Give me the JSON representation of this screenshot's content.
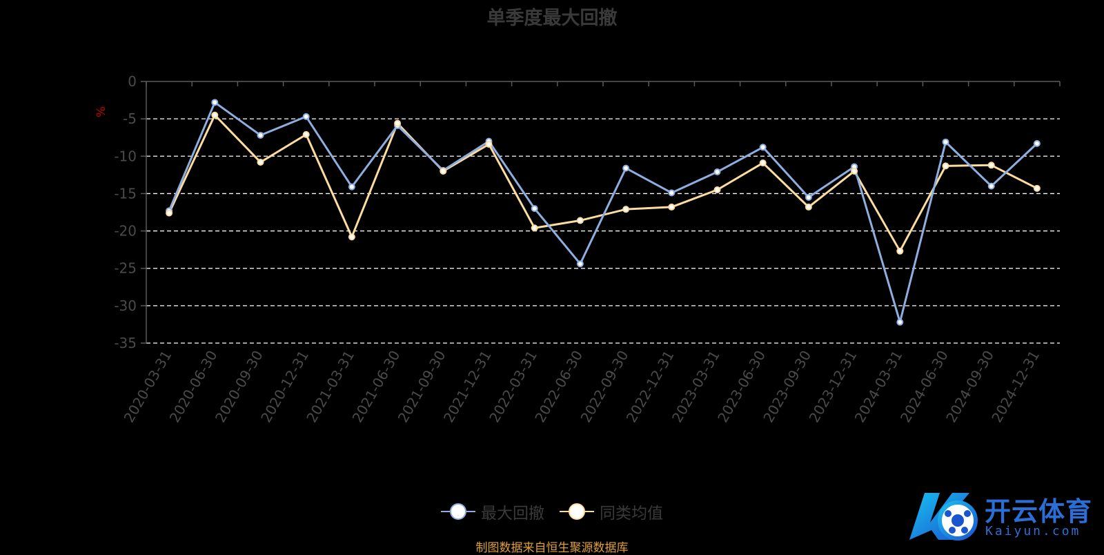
{
  "title": "单季度最大回撤",
  "source": "制图数据来自恒生聚源数据库",
  "logo": {
    "text": "开云体育",
    "sub": "Kaiyun.com"
  },
  "colors": {
    "series1": "#8eaee0",
    "series2": "#fddca0",
    "grid": "#ffffff",
    "axis": "#5a5a5a",
    "tick_label": "#4a4a4a",
    "unit": "#c00000"
  },
  "chart_data": {
    "type": "line",
    "title": "单季度最大回撤",
    "ylabel": "%",
    "ylim": [
      -35,
      0
    ],
    "yticks": [
      0,
      -5,
      -10,
      -15,
      -20,
      -25,
      -30,
      -35
    ],
    "grid": true,
    "legend_position": "bottom-center",
    "categories": [
      "2020-03-31",
      "2020-06-30",
      "2020-09-30",
      "2020-12-31",
      "2021-03-31",
      "2021-06-30",
      "2021-09-30",
      "2021-12-31",
      "2022-03-31",
      "2022-06-30",
      "2022-09-30",
      "2022-12-31",
      "2023-03-31",
      "2023-06-30",
      "2023-09-30",
      "2023-12-31",
      "2024-03-31",
      "2024-06-30",
      "2024-09-30",
      "2024-12-31"
    ],
    "series": [
      {
        "name": "最大回撤",
        "values": [
          -17.3,
          -2.8,
          -7.2,
          -4.7,
          -14.1,
          -5.9,
          -11.9,
          -8.0,
          -17.0,
          -24.4,
          -11.6,
          -14.9,
          -12.1,
          -8.8,
          -15.5,
          -11.4,
          -32.2,
          -8.1,
          -14.0,
          -8.3
        ]
      },
      {
        "name": "同类均值",
        "values": [
          -17.6,
          -4.5,
          -10.8,
          -7.1,
          -20.8,
          -5.6,
          -12.0,
          -8.4,
          -19.6,
          -18.6,
          -17.1,
          -16.8,
          -14.5,
          -10.9,
          -16.8,
          -12.0,
          -22.7,
          -11.3,
          -11.2,
          -14.3
        ]
      }
    ]
  }
}
